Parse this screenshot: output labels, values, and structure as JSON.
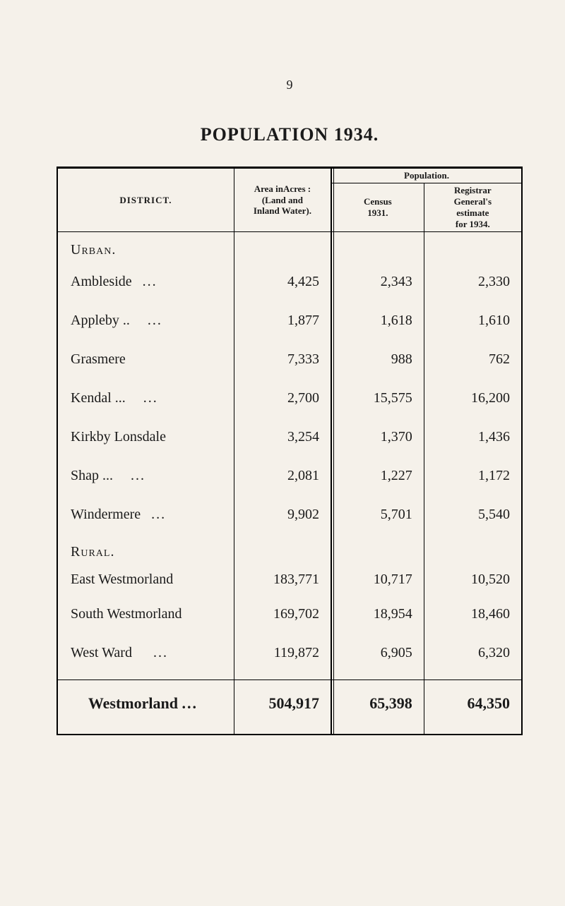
{
  "page_number": "9",
  "title": "POPULATION 1934.",
  "headers": {
    "district": "DISTRICT.",
    "area": "Area inAcres :\n(Land and\nInland Water).",
    "population": "Population.",
    "census": "Census\n1931.",
    "estimate": "Registrar\nGeneral's\nestimate\nfor 1934."
  },
  "sections": {
    "urban": "Urban.",
    "rural": "Rural."
  },
  "rows": {
    "ambleside": {
      "name": "Ambleside",
      "dots": "...",
      "area": "4,425",
      "census": "2,343",
      "est": "2,330"
    },
    "appleby": {
      "name": "Appleby ..",
      "dots": "...",
      "area": "1,877",
      "census": "1,618",
      "est": "1,610"
    },
    "grasmere": {
      "name": "Grasmere",
      "dots": "",
      "area": "7,333",
      "census": "988",
      "est": "762"
    },
    "kendal": {
      "name": "Kendal   ...",
      "dots": "...",
      "area": "2,700",
      "census": "15,575",
      "est": "16,200"
    },
    "kirkby": {
      "name": "Kirkby Lonsdale",
      "dots": "",
      "area": "3,254",
      "census": "1,370",
      "est": "1,436"
    },
    "shap": {
      "name": "Shap      ...",
      "dots": "...",
      "area": "2,081",
      "census": "1,227",
      "est": "1,172"
    },
    "windermere": {
      "name": "Windermere",
      "dots": "...",
      "area": "9,902",
      "census": "5,701",
      "est": "5,540"
    },
    "east_westmorland": {
      "name": "East Westmorland",
      "dots": "",
      "area": "183,771",
      "census": "10,717",
      "est": "10,520"
    },
    "south_westmorland": {
      "name": "South Westmorland",
      "dots": "",
      "area": "169,702",
      "census": "18,954",
      "est": "18,460"
    },
    "west_ward": {
      "name": "West Ward",
      "dots": "...",
      "area": "119,872",
      "census": "6,905",
      "est": "6,320"
    }
  },
  "total": {
    "name": "Westmorland",
    "dots": "...",
    "area": "504,917",
    "census": "65,398",
    "est": "64,350"
  },
  "style": {
    "background_color": "#f5f1ea",
    "text_color": "#1a1a1a",
    "border_color": "#000000",
    "font_family": "Times New Roman",
    "body_fontsize": 20,
    "title_fontsize": 26,
    "header_fontsize": 13,
    "total_fontsize": 22,
    "col_widths_percent": [
      38,
      21,
      20,
      21
    ]
  }
}
